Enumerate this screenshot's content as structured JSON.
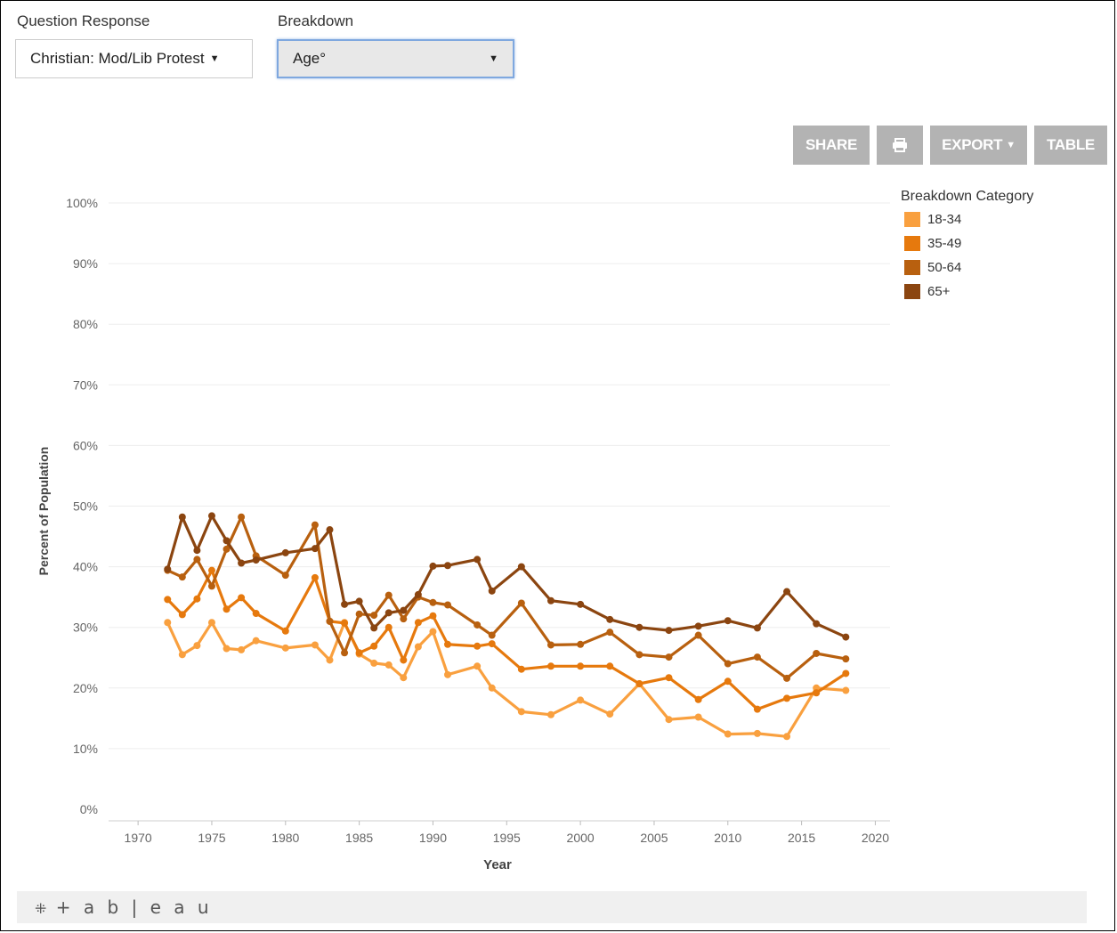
{
  "filters": {
    "question_response": {
      "label": "Question Response",
      "value": "Christian: Mod/Lib Protest"
    },
    "breakdown": {
      "label": "Breakdown",
      "value": "Age°"
    }
  },
  "toolbar": {
    "share_label": "SHARE",
    "print_icon": "print-icon",
    "export_label": "EXPORT",
    "table_label": "TABLE"
  },
  "legend": {
    "title": "Breakdown Category"
  },
  "footer": {
    "logo_text": "+ a b | e a u",
    "logo_icon": "tableau-logo-icon"
  },
  "colors": {
    "18-34": "#f9a03f",
    "35-49": "#e6790d",
    "50-64": "#b8600f",
    "65+": "#8b4510"
  },
  "chart_data": {
    "type": "line",
    "xlabel": "Year",
    "ylabel": "Percent of Population",
    "xlim": [
      1968,
      2021
    ],
    "ylim": [
      0,
      100
    ],
    "x_ticks": [
      "1970",
      "1975",
      "1980",
      "1985",
      "1990",
      "1995",
      "2000",
      "2005",
      "2010",
      "2015",
      "2020"
    ],
    "y_ticks": [
      "0%",
      "10%",
      "20%",
      "30%",
      "40%",
      "50%",
      "60%",
      "70%",
      "80%",
      "90%",
      "100%"
    ],
    "grid": true,
    "legend_position": "top-right",
    "x": [
      1972,
      1973,
      1974,
      1975,
      1976,
      1977,
      1978,
      1980,
      1982,
      1983,
      1984,
      1985,
      1986,
      1987,
      1988,
      1989,
      1990,
      1991,
      1993,
      1994,
      1996,
      1998,
      2000,
      2002,
      2004,
      2006,
      2008,
      2010,
      2012,
      2014,
      2016,
      2018
    ],
    "series": [
      {
        "name": "18-34",
        "values": [
          30.8,
          25.5,
          27.0,
          30.8,
          26.5,
          26.3,
          27.8,
          26.6,
          27.1,
          24.6,
          30.8,
          25.6,
          24.1,
          23.8,
          21.7,
          26.8,
          29.3,
          22.2,
          23.6,
          20.0,
          16.1,
          15.6,
          18.0,
          15.7,
          20.7,
          14.8,
          15.2,
          12.4,
          12.5,
          12.0,
          20.0,
          19.6
        ]
      },
      {
        "name": "35-49",
        "values": [
          34.6,
          32.1,
          34.7,
          39.4,
          33.0,
          34.9,
          32.3,
          29.4,
          38.2,
          31.0,
          30.7,
          25.8,
          26.9,
          30.0,
          24.6,
          30.8,
          31.9,
          27.2,
          26.9,
          27.3,
          23.1,
          23.6,
          23.6,
          23.6,
          20.7,
          21.7,
          18.1,
          21.1,
          16.5,
          18.3,
          19.2,
          22.4
        ]
      },
      {
        "name": "50-64",
        "values": [
          39.4,
          38.3,
          41.2,
          36.8,
          42.9,
          48.2,
          41.8,
          38.6,
          46.9,
          31.0,
          25.8,
          32.2,
          32.0,
          35.3,
          31.4,
          35.0,
          34.1,
          33.7,
          30.4,
          28.7,
          34.0,
          27.1,
          27.2,
          29.2,
          25.5,
          25.1,
          28.7,
          24.0,
          25.1,
          21.6,
          25.7,
          24.8
        ]
      },
      {
        "name": "65+",
        "values": [
          39.6,
          48.2,
          42.7,
          48.4,
          44.3,
          40.6,
          41.1,
          42.3,
          43.0,
          46.1,
          33.8,
          34.3,
          29.9,
          32.4,
          32.8,
          35.4,
          40.1,
          40.2,
          41.2,
          36.0,
          40.0,
          34.4,
          33.8,
          31.3,
          30.0,
          29.5,
          30.2,
          31.1,
          29.9,
          35.9,
          30.6,
          28.4
        ]
      }
    ]
  }
}
